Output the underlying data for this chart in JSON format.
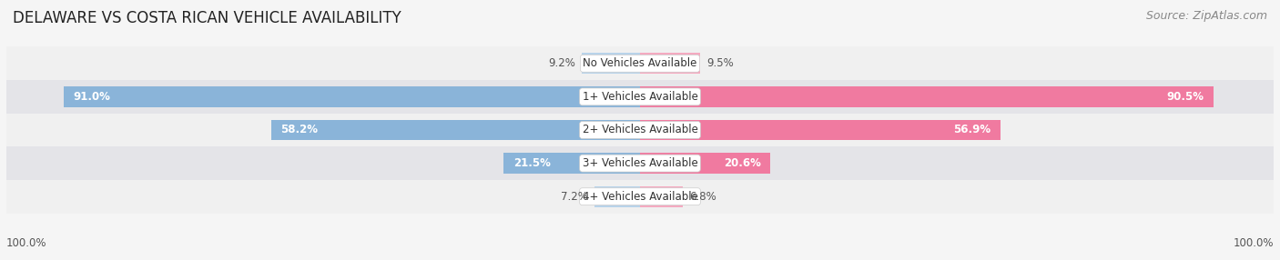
{
  "title": "DELAWARE VS COSTA RICAN VEHICLE AVAILABILITY",
  "source": "Source: ZipAtlas.com",
  "categories": [
    "No Vehicles Available",
    "1+ Vehicles Available",
    "2+ Vehicles Available",
    "3+ Vehicles Available",
    "4+ Vehicles Available"
  ],
  "delaware_values": [
    9.2,
    91.0,
    58.2,
    21.5,
    7.2
  ],
  "costarican_values": [
    9.5,
    90.5,
    56.9,
    20.6,
    6.8
  ],
  "delaware_color": "#8ab4d9",
  "costarican_color": "#f07aA0",
  "delaware_color_light": "#b8d3ea",
  "costarican_color_light": "#f5aac0",
  "row_colors": [
    "#f0f0f0",
    "#e4e4e8"
  ],
  "max_value": 100.0,
  "bar_height": 0.62,
  "title_fontsize": 12,
  "label_fontsize": 8.5,
  "value_fontsize": 8.5,
  "legend_fontsize": 9,
  "source_fontsize": 9,
  "bg_color": "#f5f5f5"
}
